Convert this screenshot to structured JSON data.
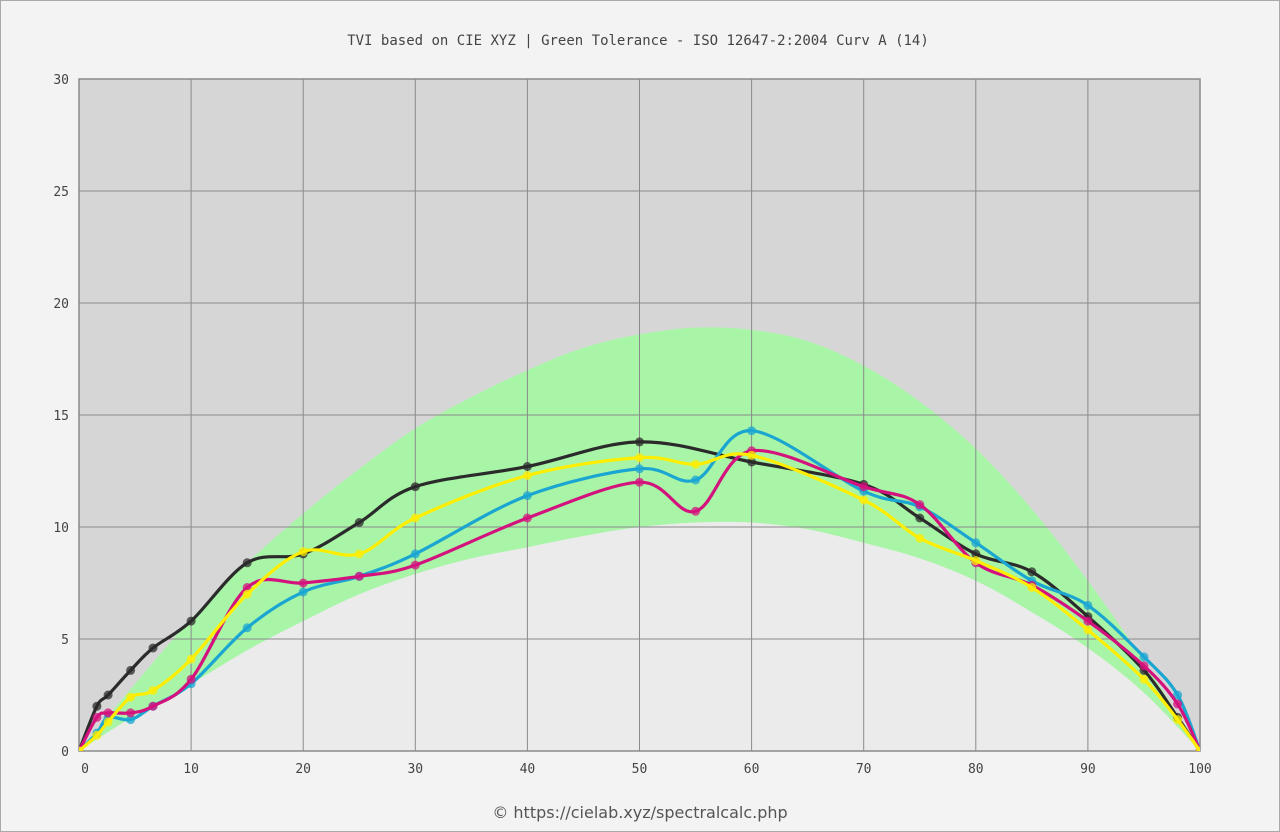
{
  "chart_data": {
    "type": "line",
    "title": "TVI based on CIE XYZ  |  Green Tolerance - ISO 12647-2:2004 Curv A (14)",
    "xlim": [
      0,
      100
    ],
    "ylim": [
      0,
      30
    ],
    "x_ticks": [
      "0",
      "10",
      "20",
      "30",
      "40",
      "50",
      "60",
      "70",
      "80",
      "90",
      "100"
    ],
    "y_ticks": [
      "0",
      "5",
      "10",
      "15",
      "20",
      "25",
      "30"
    ],
    "grid": true,
    "colors": {
      "band": "#a8f5a8",
      "upper_area": "#d6d6d6",
      "lower_area": "#ebebeb",
      "grid": "#8a8a8a",
      "black_series": "#2b2b2b",
      "cyan_series": "#1ba6d2",
      "magenta_series": "#d4127e",
      "yellow_series": "#ffee00"
    },
    "tolerance_band": {
      "x": [
        0,
        5,
        10,
        15,
        20,
        25,
        30,
        35,
        40,
        45,
        50,
        55,
        60,
        65,
        70,
        75,
        80,
        85,
        90,
        95,
        100
      ],
      "lower": [
        0,
        1.6,
        3.0,
        4.5,
        5.8,
        7.0,
        7.9,
        8.6,
        9.1,
        9.6,
        10.0,
        10.2,
        10.2,
        9.9,
        9.3,
        8.6,
        7.6,
        6.2,
        4.6,
        2.6,
        0
      ],
      "upper": [
        0,
        3.0,
        5.9,
        8.4,
        10.6,
        12.6,
        14.4,
        15.8,
        17.0,
        18.0,
        18.6,
        18.9,
        18.8,
        18.3,
        17.2,
        15.6,
        13.5,
        10.8,
        7.6,
        4.0,
        0
      ]
    },
    "series": [
      {
        "color": "#2b2b2b",
        "x": [
          0,
          1.6,
          2.6,
          4.6,
          6.6,
          10,
          15,
          20,
          25,
          30,
          40,
          50,
          60,
          70,
          75,
          80,
          85,
          90,
          95,
          98,
          100
        ],
        "y": [
          0,
          2.0,
          2.5,
          3.6,
          4.6,
          5.8,
          8.4,
          8.8,
          10.2,
          11.8,
          12.7,
          13.8,
          12.9,
          11.9,
          10.4,
          8.8,
          8.0,
          6.0,
          3.6,
          1.5,
          0
        ]
      },
      {
        "color": "#1ba6d2",
        "x": [
          0,
          1.6,
          2.6,
          4.6,
          6.6,
          10,
          15,
          20,
          25,
          30,
          40,
          50,
          55,
          60,
          70,
          75,
          80,
          85,
          90,
          95,
          98,
          100
        ],
        "y": [
          0,
          0.8,
          1.5,
          1.4,
          2.0,
          3.0,
          5.5,
          7.1,
          7.8,
          8.8,
          11.4,
          12.6,
          12.1,
          14.3,
          11.6,
          10.9,
          9.3,
          7.6,
          6.5,
          4.2,
          2.5,
          0
        ]
      },
      {
        "color": "#d4127e",
        "x": [
          0,
          1.6,
          2.6,
          4.6,
          6.6,
          10,
          15,
          20,
          25,
          30,
          40,
          50,
          55,
          60,
          70,
          75,
          80,
          85,
          90,
          95,
          98,
          100
        ],
        "y": [
          0,
          1.5,
          1.7,
          1.7,
          2.0,
          3.2,
          7.3,
          7.5,
          7.8,
          8.3,
          10.4,
          12.0,
          10.7,
          13.4,
          11.8,
          11.0,
          8.4,
          7.4,
          5.8,
          3.8,
          2.1,
          0
        ]
      },
      {
        "color": "#ffee00",
        "x": [
          0,
          1.6,
          2.6,
          4.6,
          6.6,
          10,
          15,
          20,
          25,
          30,
          40,
          50,
          55,
          60,
          70,
          75,
          80,
          85,
          90,
          95,
          98,
          100
        ],
        "y": [
          0,
          0.7,
          1.3,
          2.4,
          2.7,
          4.1,
          7.0,
          8.9,
          8.8,
          10.4,
          12.3,
          13.1,
          12.8,
          13.2,
          11.2,
          9.5,
          8.5,
          7.3,
          5.4,
          3.2,
          1.4,
          0
        ]
      }
    ]
  },
  "footer": "© https://cielab.xyz/spectralcalc.php"
}
